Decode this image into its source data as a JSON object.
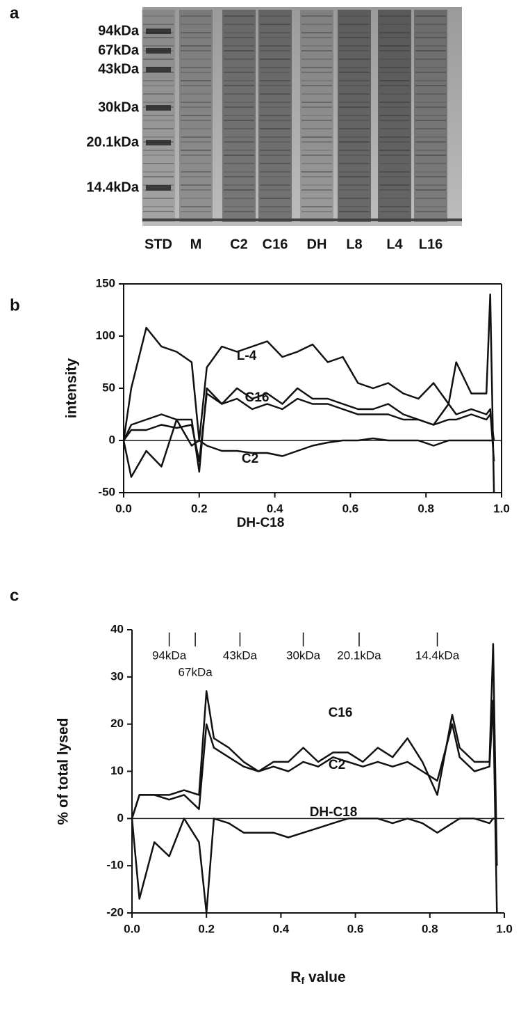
{
  "panel_labels": [
    "a",
    "b",
    "c"
  ],
  "gel": {
    "mw_labels": [
      "94kDa",
      "67kDa",
      "43kDa",
      "30kDa",
      "20.1kDa",
      "14.4kDa"
    ],
    "lane_labels": [
      "STD",
      "M",
      "C2",
      "C16",
      "DH",
      "L8",
      "L4",
      "L16"
    ]
  },
  "chart_data": [
    {
      "type": "line",
      "ylabel": "intensity",
      "xlim": [
        0,
        1
      ],
      "ylim": [
        -50,
        150
      ],
      "xticks": [
        {
          "value": 0,
          "label": "0.0"
        },
        0.2,
        0.4,
        0.6,
        0.8,
        {
          "value": 1,
          "label": "1.0"
        }
      ],
      "yticks": [
        -50,
        0,
        50,
        100,
        150
      ],
      "box": true,
      "x": [
        0.0,
        0.02,
        0.06,
        0.1,
        0.14,
        0.18,
        0.2,
        0.22,
        0.26,
        0.3,
        0.34,
        0.38,
        0.42,
        0.46,
        0.5,
        0.54,
        0.58,
        0.62,
        0.66,
        0.7,
        0.74,
        0.78,
        0.82,
        0.86,
        0.88,
        0.92,
        0.96,
        0.97,
        0.98
      ],
      "series": [
        {
          "name": "L-4",
          "color": "#111111",
          "values": [
            0,
            50,
            108,
            90,
            85,
            75,
            0,
            70,
            90,
            85,
            90,
            95,
            80,
            85,
            92,
            75,
            80,
            55,
            50,
            55,
            45,
            40,
            55,
            35,
            75,
            45,
            45,
            140,
            -50
          ]
        },
        {
          "name": "C16",
          "color": "#111111",
          "values": [
            0,
            15,
            20,
            25,
            20,
            20,
            -30,
            50,
            35,
            50,
            40,
            45,
            35,
            50,
            40,
            40,
            35,
            30,
            30,
            35,
            25,
            20,
            15,
            35,
            25,
            30,
            25,
            30,
            -20
          ]
        },
        {
          "name": "C2",
          "color": "#111111",
          "values": [
            0,
            10,
            10,
            15,
            12,
            15,
            -20,
            45,
            35,
            40,
            30,
            35,
            30,
            40,
            35,
            35,
            30,
            25,
            25,
            25,
            20,
            20,
            15,
            20,
            20,
            25,
            20,
            25,
            0
          ]
        },
        {
          "name": "DH-C18",
          "color": "#111111",
          "values": [
            0,
            -35,
            -10,
            -25,
            20,
            -5,
            0,
            -5,
            -10,
            -10,
            -12,
            -12,
            -15,
            -10,
            -5,
            -2,
            0,
            0,
            2,
            0,
            0,
            0,
            -5,
            0,
            0,
            0,
            0,
            0,
            0
          ]
        }
      ]
    },
    {
      "type": "line",
      "ylabel": "% of total lysed",
      "xlabel": [
        "R",
        "f",
        " value"
      ],
      "xlim": [
        0,
        1
      ],
      "ylim": [
        -20,
        40
      ],
      "xticks": [
        {
          "value": 0,
          "label": "0.0"
        },
        0.2,
        0.4,
        0.6,
        0.8,
        {
          "value": 1,
          "label": "1.0"
        }
      ],
      "yticks": [
        -20,
        -10,
        0,
        10,
        20,
        30,
        40
      ],
      "box": false,
      "markers": [
        {
          "label": "94kDa",
          "x": 0.1
        },
        {
          "label": "67kDa",
          "x": 0.17
        },
        {
          "label": "43kDa",
          "x": 0.29
        },
        {
          "label": "30kDa",
          "x": 0.46
        },
        {
          "label": "20.1kDa",
          "x": 0.61
        },
        {
          "label": "14.4kDa",
          "x": 0.82
        }
      ],
      "x": [
        0.0,
        0.02,
        0.06,
        0.1,
        0.14,
        0.18,
        0.2,
        0.22,
        0.26,
        0.3,
        0.34,
        0.38,
        0.42,
        0.46,
        0.5,
        0.54,
        0.58,
        0.62,
        0.66,
        0.7,
        0.74,
        0.78,
        0.82,
        0.86,
        0.88,
        0.92,
        0.96,
        0.97,
        0.98
      ],
      "series": [
        {
          "name": "C16",
          "color": "#111111",
          "values": [
            0,
            5,
            5,
            5,
            6,
            5,
            27,
            17,
            15,
            12,
            10,
            12,
            12,
            15,
            12,
            14,
            14,
            12,
            15,
            13,
            17,
            12,
            5,
            22,
            15,
            12,
            12,
            37,
            -10
          ]
        },
        {
          "name": "C2",
          "color": "#111111",
          "values": [
            0,
            5,
            5,
            4,
            5,
            2,
            20,
            15,
            13,
            11,
            10,
            11,
            10,
            12,
            11,
            13,
            12,
            11,
            12,
            11,
            12,
            10,
            8,
            20,
            13,
            10,
            11,
            25,
            -20
          ]
        },
        {
          "name": "DH-C18",
          "color": "#111111",
          "values": [
            0,
            -17,
            -5,
            -8,
            0,
            -5,
            -20,
            0,
            -1,
            -3,
            -3,
            -3,
            -4,
            -3,
            -2,
            -1,
            0,
            0,
            0,
            -1,
            0,
            -1,
            -3,
            -1,
            0,
            0,
            -1,
            0,
            0
          ]
        }
      ]
    }
  ]
}
